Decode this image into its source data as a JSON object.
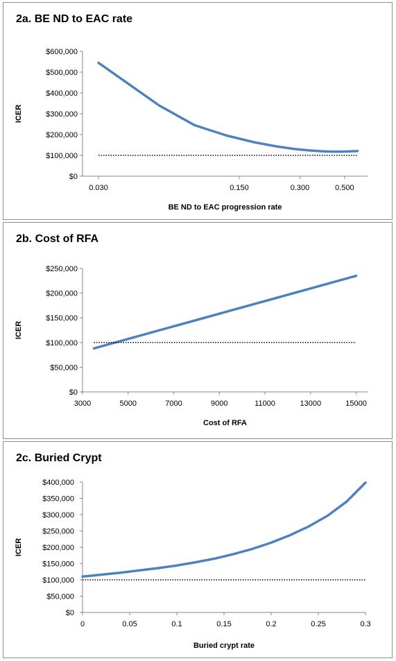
{
  "chart_data": [
    {
      "type": "line",
      "title": "2a. BE ND to EAC  rate",
      "xlabel": "BE ND to EAC progression rate",
      "ylabel": "ICER",
      "x_scale": "log",
      "xlim": [
        0.025,
        0.65
      ],
      "x_ticks": [
        0.03,
        0.15,
        0.3,
        0.5
      ],
      "x_tick_labels": [
        "0.030",
        "0.150",
        "0.300",
        "0.500"
      ],
      "ylim": [
        0,
        600000
      ],
      "y_ticks": [
        0,
        100000,
        200000,
        300000,
        400000,
        500000,
        600000
      ],
      "y_tick_labels": [
        "$0",
        "$100,000",
        "$200,000",
        "$300,000",
        "$400,000",
        "$500,000",
        "$600,000"
      ],
      "grid": false,
      "series": [
        {
          "style": "solid",
          "color": "#4f81bd",
          "x": [
            0.03,
            0.06,
            0.09,
            0.13,
            0.18,
            0.23,
            0.28,
            0.33,
            0.38,
            0.43,
            0.48,
            0.53,
            0.58
          ],
          "y": [
            545000,
            340000,
            245000,
            195000,
            162000,
            143000,
            131000,
            124000,
            120000,
            118000,
            118000,
            119000,
            121000
          ]
        },
        {
          "style": "dotted",
          "color": "#000000",
          "x": [
            0.03,
            0.58
          ],
          "y": [
            100000,
            100000
          ]
        }
      ]
    },
    {
      "type": "line",
      "title": "2b. Cost of RFA",
      "xlabel": "Cost of RFA",
      "ylabel": "ICER",
      "xlim": [
        3000,
        15500
      ],
      "x_ticks": [
        3000,
        5000,
        7000,
        9000,
        11000,
        13000,
        15000
      ],
      "x_tick_labels": [
        "3000",
        "5000",
        "7000",
        "9000",
        "11000",
        "13000",
        "15000"
      ],
      "ylim": [
        0,
        250000
      ],
      "y_ticks": [
        0,
        50000,
        100000,
        150000,
        200000,
        250000
      ],
      "y_tick_labels": [
        "$0",
        "$50,000",
        "$100,000",
        "$150,000",
        "$200,000",
        "$250,000"
      ],
      "grid": false,
      "series": [
        {
          "style": "solid",
          "color": "#4f81bd",
          "x": [
            3500,
            15000
          ],
          "y": [
            88000,
            235000
          ]
        },
        {
          "style": "dotted",
          "color": "#000000",
          "x": [
            3500,
            15000
          ],
          "y": [
            100000,
            100000
          ]
        }
      ]
    },
    {
      "type": "line",
      "title": "2c. Buried Crypt",
      "xlabel": "Buried crypt rate",
      "ylabel": "ICER",
      "xlim": [
        0,
        0.3
      ],
      "x_ticks": [
        0,
        0.05,
        0.1,
        0.15,
        0.2,
        0.25,
        0.3
      ],
      "x_tick_labels": [
        "0",
        "0.05",
        "0.1",
        "0.15",
        "0.2",
        "0.25",
        "0.3"
      ],
      "ylim": [
        0,
        400000
      ],
      "y_ticks": [
        0,
        50000,
        100000,
        150000,
        200000,
        250000,
        300000,
        350000,
        400000
      ],
      "y_tick_labels": [
        "$0",
        "$50,000",
        "$100,000",
        "$150,000",
        "$200,000",
        "$250,000",
        "$300,000",
        "$350,000",
        "$400,000"
      ],
      "grid": false,
      "series": [
        {
          "style": "solid",
          "color": "#4f81bd",
          "x": [
            0,
            0.02,
            0.04,
            0.06,
            0.08,
            0.1,
            0.12,
            0.14,
            0.16,
            0.18,
            0.2,
            0.22,
            0.24,
            0.26,
            0.28,
            0.3
          ],
          "y": [
            110000,
            116000,
            122000,
            129000,
            136000,
            144000,
            154000,
            165000,
            179000,
            195000,
            214000,
            237000,
            264000,
            297000,
            340000,
            398000
          ]
        },
        {
          "style": "dotted",
          "color": "#000000",
          "x": [
            0,
            0.3
          ],
          "y": [
            100000,
            100000
          ]
        }
      ]
    }
  ]
}
